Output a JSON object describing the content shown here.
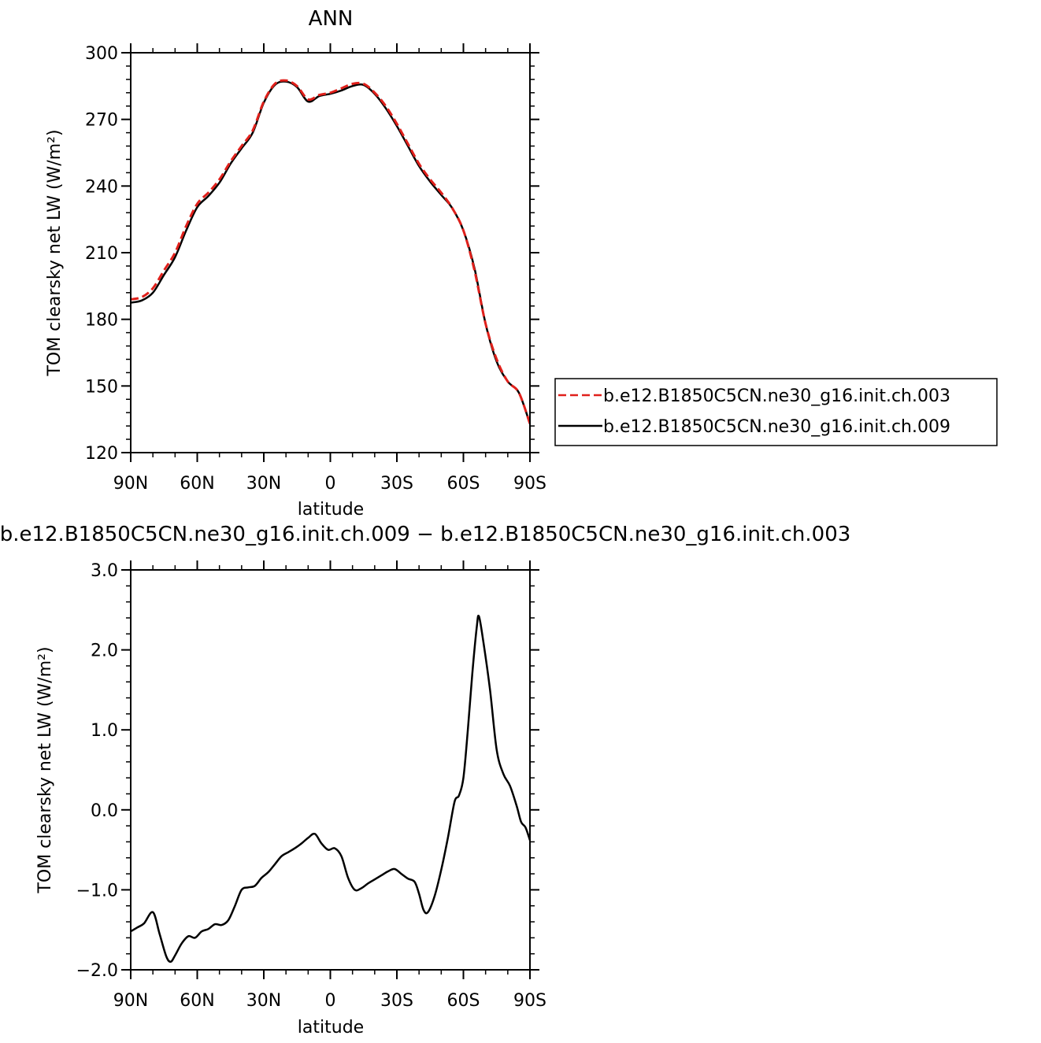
{
  "chart_data": [
    {
      "type": "line",
      "title": "ANN",
      "xlabel": "latitude",
      "ylabel": "TOM clearsky net LW (W/m²)",
      "xlim": [
        90,
        -90
      ],
      "ylim": [
        120,
        300
      ],
      "x_ticks": [
        90,
        60,
        30,
        0,
        -30,
        -60,
        -90
      ],
      "x_tick_labels": [
        "90N",
        "60N",
        "30N",
        "0",
        "30S",
        "60S",
        "90S"
      ],
      "y_ticks": [
        120,
        150,
        180,
        210,
        240,
        270,
        300
      ],
      "y_tick_labels": [
        "120",
        "150",
        "180",
        "210",
        "240",
        "270",
        "300"
      ],
      "legend": {
        "placement": "right"
      },
      "series": [
        {
          "name": "b.e12.B1850C5CN.ne30_g16.init.ch.003",
          "color": "#e0201b",
          "dash": "dashed",
          "x": [
            90,
            85,
            80,
            75,
            70,
            65,
            60,
            55,
            50,
            45,
            40,
            35,
            30,
            25,
            20,
            15,
            10,
            5,
            0,
            -5,
            -10,
            -15,
            -20,
            -25,
            -30,
            -35,
            -40,
            -45,
            -50,
            -55,
            -60,
            -65,
            -70,
            -75,
            -80,
            -85,
            -90
          ],
          "values": [
            189,
            190,
            194,
            202,
            210,
            222,
            232,
            237,
            243,
            251,
            258,
            265,
            278,
            286,
            287.5,
            285,
            279,
            281,
            282,
            284,
            286,
            286,
            282,
            276,
            268,
            259,
            250,
            243,
            237,
            230,
            220,
            202,
            178,
            162,
            152,
            147,
            133
          ]
        },
        {
          "name": "b.e12.B1850C5CN.ne30_g16.init.ch.009",
          "color": "#000000",
          "dash": "solid",
          "x": [
            90,
            85,
            80,
            75,
            70,
            65,
            60,
            55,
            50,
            45,
            40,
            35,
            30,
            25,
            20,
            15,
            10,
            5,
            0,
            -5,
            -10,
            -15,
            -20,
            -25,
            -30,
            -35,
            -40,
            -45,
            -50,
            -55,
            -60,
            -65,
            -70,
            -75,
            -80,
            -85,
            -90
          ],
          "values": [
            187.5,
            188.5,
            192,
            200,
            208,
            220,
            230.5,
            235.5,
            241.5,
            250,
            257,
            264,
            277.5,
            285.5,
            287,
            284.5,
            278,
            280.5,
            281.5,
            283,
            285,
            285.5,
            281.5,
            275,
            267,
            258,
            249,
            242,
            236,
            230,
            220,
            203,
            178,
            161,
            152,
            147,
            133
          ]
        }
      ]
    },
    {
      "type": "line",
      "title": "b.e12.B1850C5CN.ne30_g16.init.ch.009 − b.e12.B1850C5CN.ne30_g16.init.ch.003",
      "xlabel": "latitude",
      "ylabel": "TOM clearsky net LW (W/m²)",
      "xlim": [
        90,
        -90
      ],
      "ylim": [
        -2.0,
        3.0
      ],
      "x_ticks": [
        90,
        60,
        30,
        0,
        -30,
        -60,
        -90
      ],
      "x_tick_labels": [
        "90N",
        "60N",
        "30N",
        "0",
        "30S",
        "60S",
        "90S"
      ],
      "y_ticks": [
        -2.0,
        -1.0,
        0.0,
        1.0,
        2.0,
        3.0
      ],
      "y_tick_labels": [
        "−2.0",
        "−1.0",
        "0.0",
        "1.0",
        "2.0",
        "3.0"
      ],
      "series": [
        {
          "color": "#000000",
          "dash": "solid",
          "x": [
            90,
            87,
            84,
            80,
            77,
            74,
            72,
            70,
            67,
            64,
            61,
            58,
            55,
            52,
            49,
            46,
            43,
            40,
            37,
            34,
            31,
            28,
            25,
            22,
            19,
            16,
            13,
            10,
            7,
            4,
            1,
            -2,
            -5,
            -8,
            -11,
            -14,
            -17,
            -20,
            -23,
            -26,
            -29,
            -32,
            -35,
            -38,
            -40,
            -42,
            -44,
            -47,
            -50,
            -53,
            -56,
            -58,
            -60,
            -62,
            -64,
            -66,
            -67,
            -69,
            -72,
            -75,
            -78,
            -81,
            -84,
            -86,
            -88,
            -90
          ],
          "values": [
            -1.52,
            -1.47,
            -1.42,
            -1.28,
            -1.55,
            -1.83,
            -1.9,
            -1.82,
            -1.67,
            -1.58,
            -1.6,
            -1.52,
            -1.49,
            -1.43,
            -1.44,
            -1.38,
            -1.2,
            -1.0,
            -0.97,
            -0.95,
            -0.85,
            -0.78,
            -0.68,
            -0.58,
            -0.53,
            -0.48,
            -0.42,
            -0.35,
            -0.3,
            -0.42,
            -0.5,
            -0.48,
            -0.58,
            -0.85,
            -1.0,
            -0.98,
            -0.92,
            -0.87,
            -0.82,
            -0.77,
            -0.74,
            -0.8,
            -0.86,
            -0.9,
            -1.05,
            -1.25,
            -1.28,
            -1.08,
            -0.75,
            -0.35,
            0.1,
            0.18,
            0.4,
            1.0,
            1.7,
            2.28,
            2.42,
            2.1,
            1.5,
            0.75,
            0.45,
            0.3,
            0.05,
            -0.15,
            -0.22,
            -0.38
          ]
        }
      ]
    }
  ]
}
